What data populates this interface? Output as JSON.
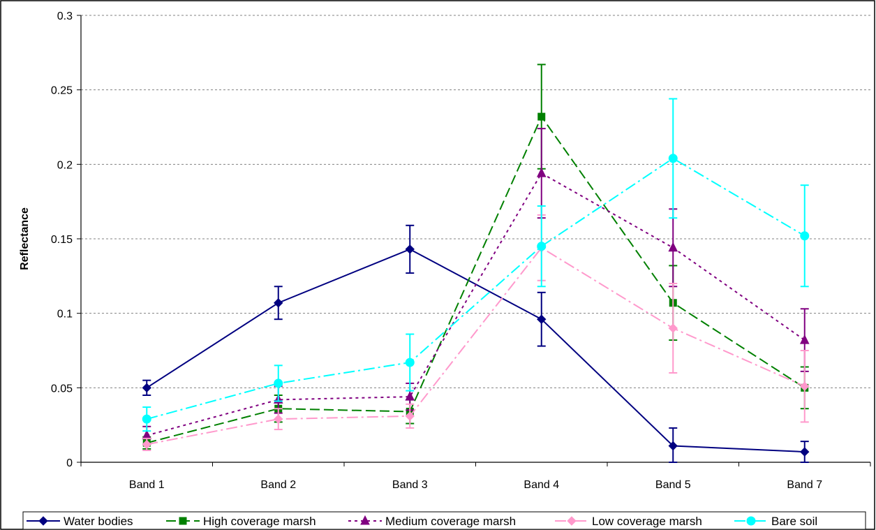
{
  "chart_data": {
    "type": "line",
    "title": "",
    "xlabel": "",
    "ylabel": "Reflectance",
    "ylim": [
      0,
      0.3
    ],
    "yticks": [
      "0",
      "0.05",
      "0.1",
      "0.15",
      "0.2",
      "0.25",
      "0.3"
    ],
    "categories": [
      "Band 1",
      "Band 2",
      "Band 3",
      "Band 4",
      "Band 5",
      "Band 7"
    ],
    "grid": "horizontal dashed",
    "legend_position": "bottom",
    "series": [
      {
        "name": "Water bodies",
        "color": "#000080",
        "marker": "diamond",
        "dash": "solid",
        "values": [
          0.05,
          0.107,
          0.143,
          0.096,
          0.011,
          0.007
        ],
        "error": [
          0.005,
          0.011,
          0.016,
          0.018,
          0.012,
          0.007
        ]
      },
      {
        "name": "High coverage marsh",
        "color": "#008000",
        "marker": "square",
        "dash": "long-dash",
        "values": [
          0.013,
          0.036,
          0.034,
          0.232,
          0.107,
          0.05
        ],
        "error": [
          0.004,
          0.009,
          0.008,
          0.035,
          0.025,
          0.014
        ]
      },
      {
        "name": "Medium coverage marsh",
        "color": "#800080",
        "marker": "triangle",
        "dash": "dotted",
        "values": [
          0.018,
          0.042,
          0.044,
          0.194,
          0.144,
          0.082
        ],
        "error": [
          0.006,
          0.009,
          0.009,
          0.03,
          0.026,
          0.021
        ]
      },
      {
        "name": "Low coverage marsh",
        "color": "#FF99CC",
        "marker": "diamond",
        "dash": "dash-dot",
        "values": [
          0.012,
          0.029,
          0.031,
          0.144,
          0.09,
          0.051
        ],
        "error": [
          0.004,
          0.007,
          0.008,
          0.022,
          0.03,
          0.024
        ]
      },
      {
        "name": "Bare soil",
        "color": "#00FFFF",
        "marker": "circle",
        "dash": "dash-dot",
        "values": [
          0.029,
          0.053,
          0.067,
          0.145,
          0.204,
          0.152
        ],
        "error": [
          0.008,
          0.012,
          0.019,
          0.027,
          0.04,
          0.034
        ]
      }
    ]
  }
}
